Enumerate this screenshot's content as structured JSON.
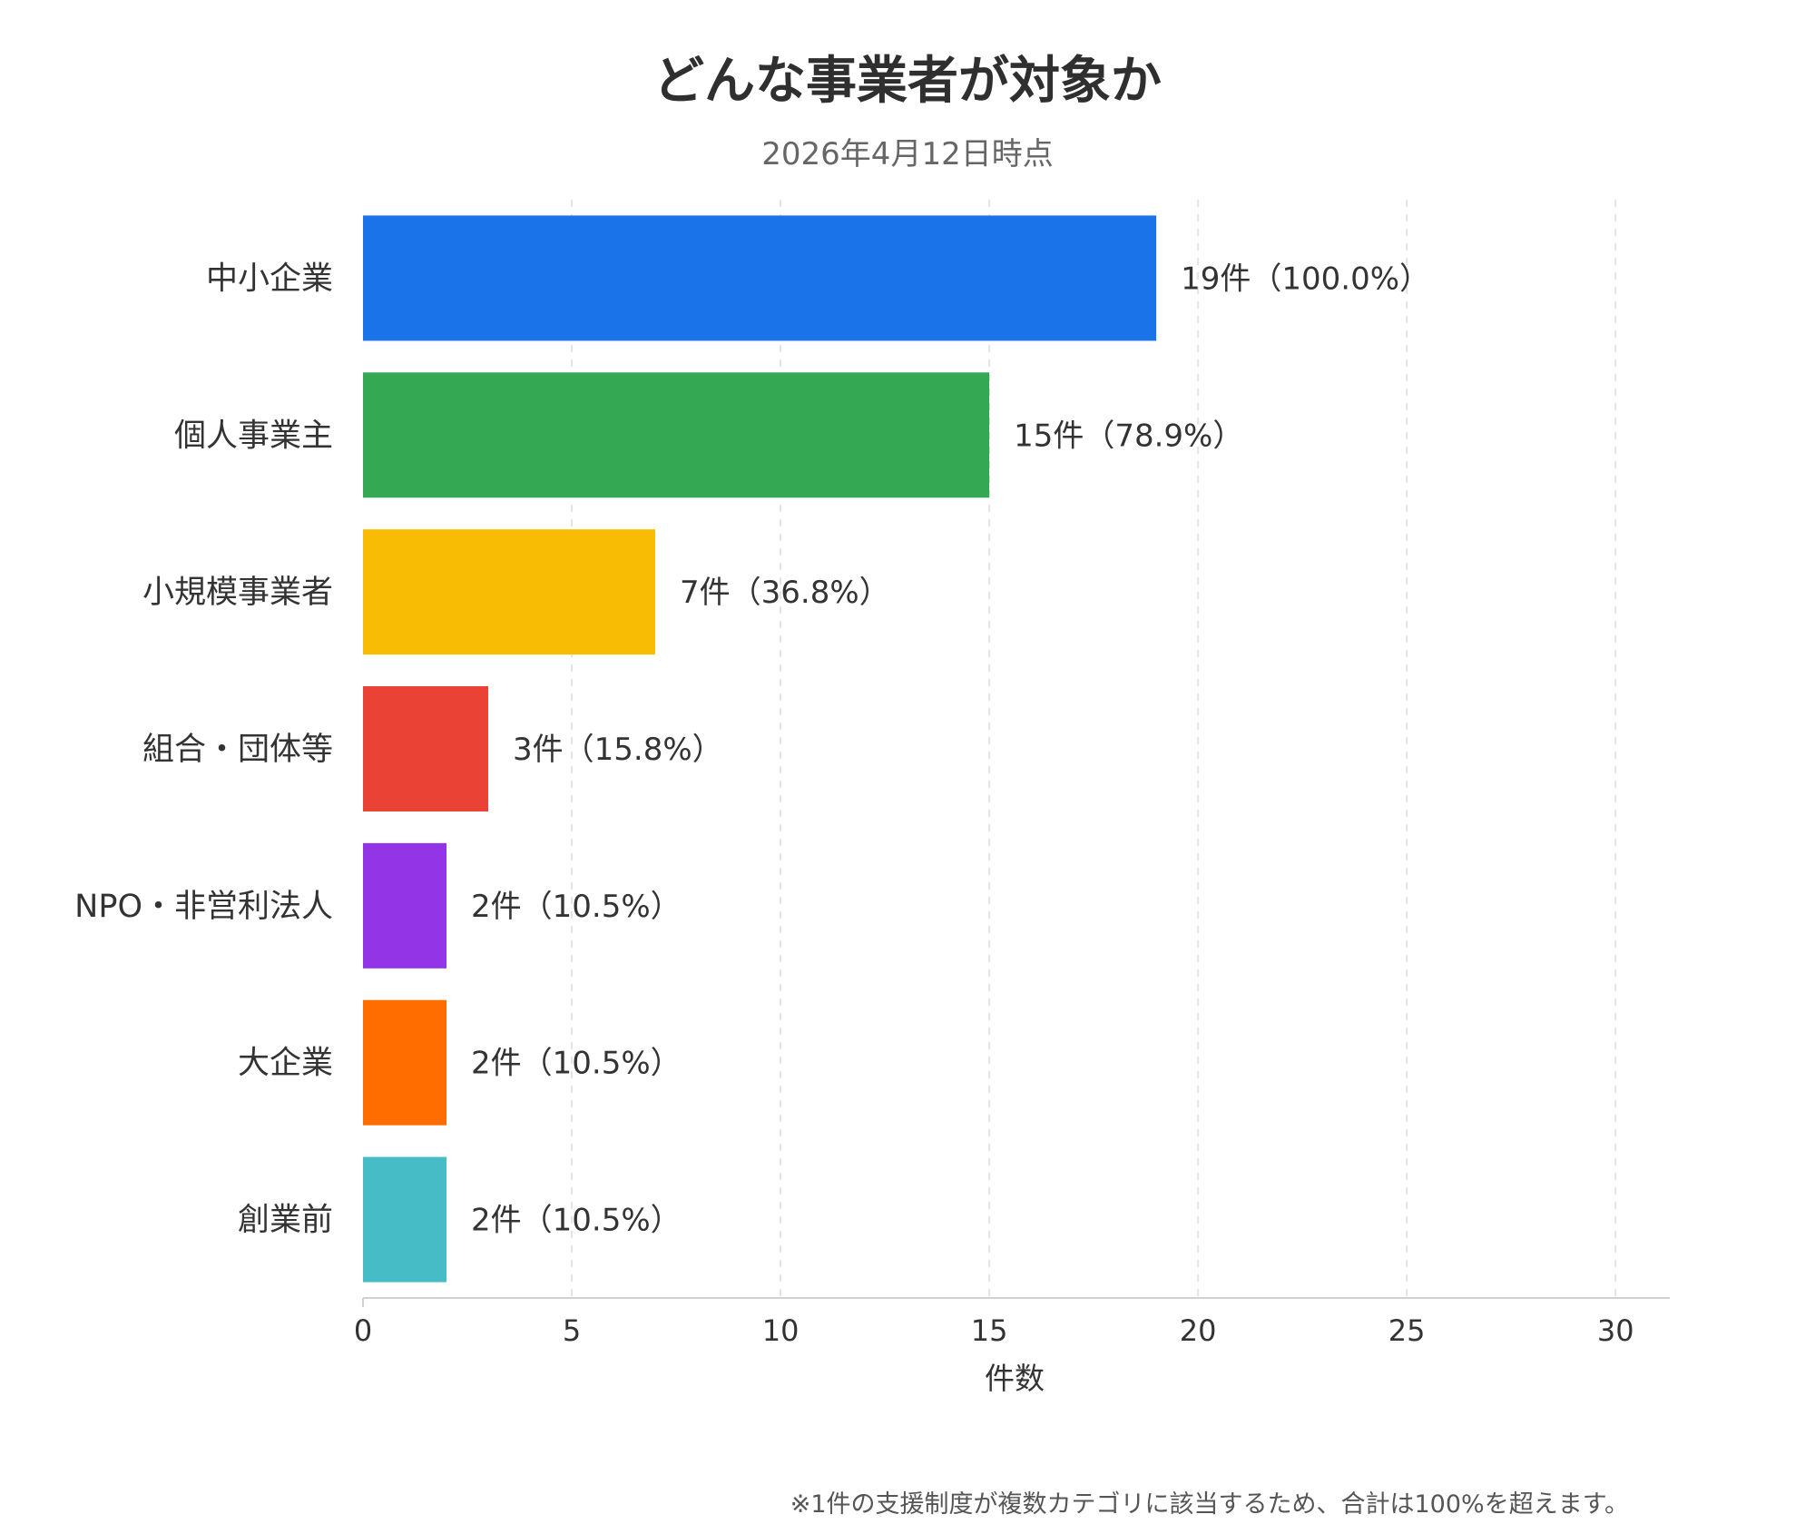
{
  "chart_data": {
    "type": "bar",
    "orientation": "horizontal",
    "title": "どんな事業者が対象か",
    "subtitle": "2026年4月12日時点",
    "xlabel": "件数",
    "ylabel": "",
    "xlim": [
      0,
      31.3
    ],
    "xticks": [
      0,
      5,
      10,
      15,
      20,
      25,
      30
    ],
    "grid": "vertical-dashed",
    "legend": "none",
    "categories": [
      "中小企業",
      "個人事業主",
      "小規模事業者",
      "組合・団体等",
      "NPO・非営利法人",
      "大企業",
      "創業前"
    ],
    "values": [
      19,
      15,
      7,
      3,
      2,
      2,
      2
    ],
    "data_labels": [
      "19件（100.0%）",
      "15件（78.9%）",
      "7件（36.8%）",
      "3件（15.8%）",
      "2件（10.5%）",
      "2件（10.5%）",
      "2件（10.5%）"
    ],
    "colors": [
      "#1a73e8",
      "#34a853",
      "#f9bc05",
      "#ea4335",
      "#9334e6",
      "#ff6d01",
      "#46bdc6"
    ],
    "note": "※1件の支援制度が複数カテゴリに該当するため、合計は100%を超えます。"
  }
}
